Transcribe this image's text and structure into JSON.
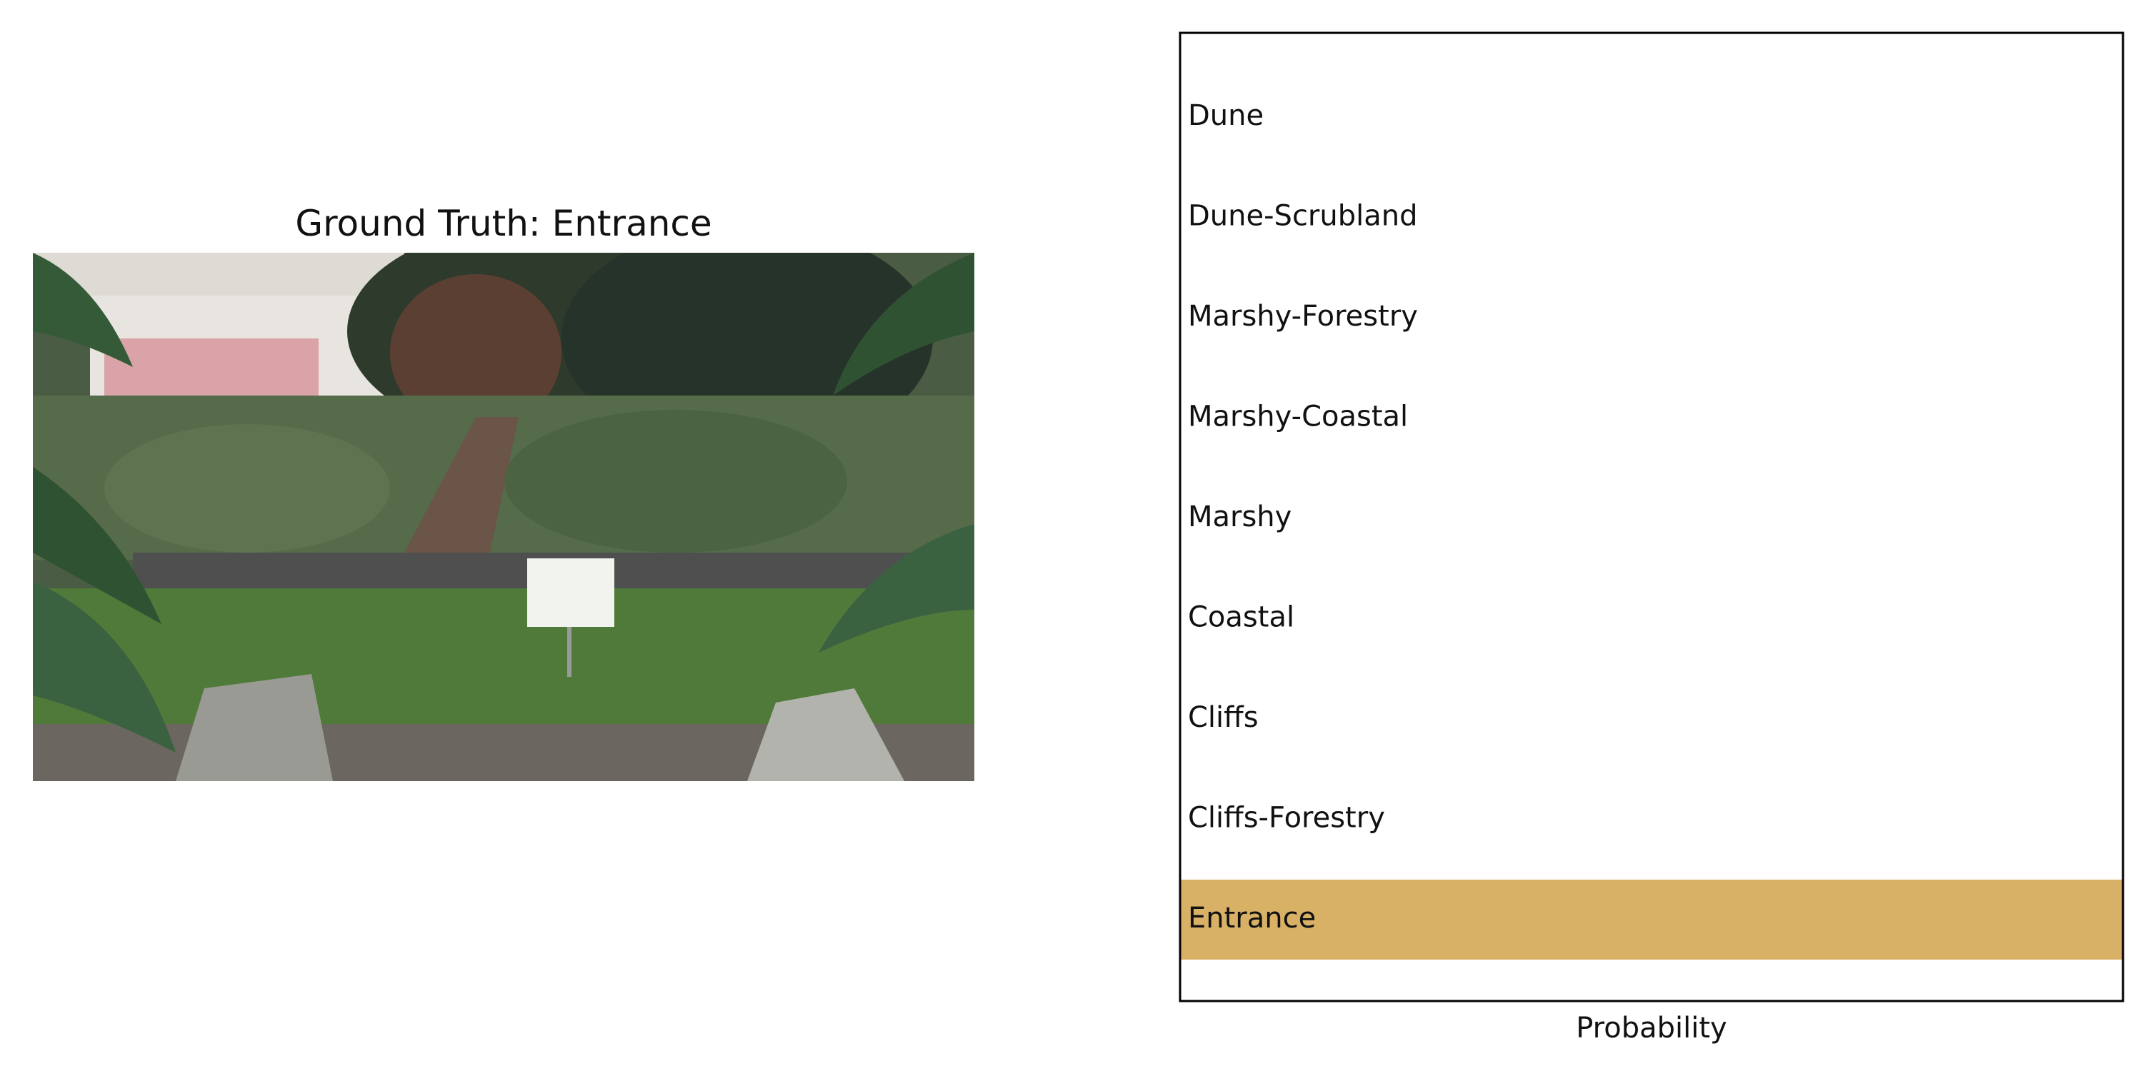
{
  "photo": {
    "title": "Ground Truth: Entrance"
  },
  "chart_data": {
    "type": "bar",
    "orientation": "horizontal",
    "categories": [
      "Dune",
      "Dune-Scrubland",
      "Marshy-Forestry",
      "Marshy-Coastal",
      "Marshy",
      "Coastal",
      "Cliffs",
      "Cliffs-Forestry",
      "Entrance"
    ],
    "values": [
      0,
      0,
      0,
      0,
      0,
      0,
      0,
      0,
      1
    ],
    "xlabel": "Probability",
    "ylabel": "",
    "xlim": [
      0,
      1
    ],
    "grid": false,
    "bar_color": "#d8b166"
  }
}
